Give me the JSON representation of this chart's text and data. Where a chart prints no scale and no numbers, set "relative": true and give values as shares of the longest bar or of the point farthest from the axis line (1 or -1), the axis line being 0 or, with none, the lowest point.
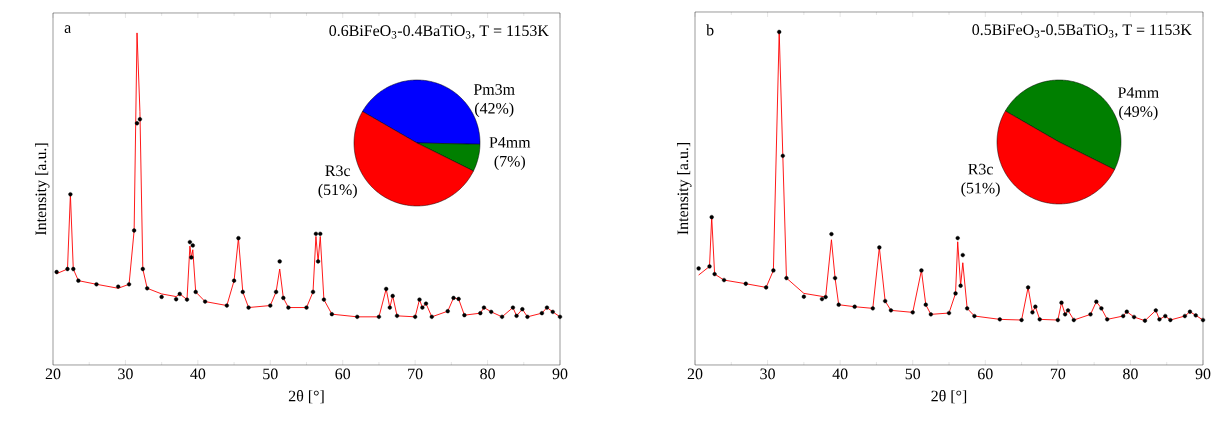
{
  "chart_data": [
    {
      "type": "line",
      "title": "0.6BiFeO$_{3}$-0.4BaTiO$_{3}$, T = 1153K",
      "xlabel": "2θ [°]",
      "ylabel": "Intensity [a.u.]",
      "annotations": [
        "a"
      ],
      "relative": true,
      "xlim": [
        20,
        90
      ],
      "xticks": [
        20,
        30,
        40,
        50,
        60,
        70,
        80,
        90
      ],
      "x": [
        20.5,
        22,
        22.4,
        22.8,
        23.5,
        26,
        29,
        30.5,
        31.2,
        31.6,
        32.0,
        32.4,
        33,
        35,
        37,
        37.5,
        38.5,
        38.9,
        39.1,
        39.3,
        39.7,
        41,
        44,
        45.0,
        45.6,
        46.2,
        47,
        50,
        50.8,
        51.3,
        51.8,
        52.5,
        55,
        55.9,
        56.3,
        56.6,
        56.9,
        57.4,
        58.5,
        62,
        65,
        66.0,
        66.5,
        66.9,
        67.5,
        70,
        70.6,
        71,
        71.5,
        72.3,
        74.5,
        75.3,
        76,
        76.8,
        79,
        79.5,
        80.5,
        82,
        83.5,
        84,
        84.8,
        85.5,
        87.5,
        88.2,
        89,
        90
      ],
      "series": [
        {
          "type": "scatter",
          "color": "#000000",
          "values": [
            0.28,
            0.289,
            0.514,
            0.289,
            0.254,
            0.243,
            0.236,
            0.243,
            0.405,
            0.728,
            0.74,
            0.289,
            0.231,
            0.205,
            0.198,
            0.214,
            0.197,
            0.37,
            0.324,
            0.36,
            0.22,
            0.191,
            0.179,
            0.254,
            0.382,
            0.22,
            0.173,
            0.179,
            0.22,
            0.312,
            0.202,
            0.173,
            0.173,
            0.22,
            0.395,
            0.312,
            0.395,
            0.197,
            0.153,
            0.145,
            0.145,
            0.229,
            0.173,
            0.208,
            0.148,
            0.145,
            0.197,
            0.173,
            0.185,
            0.145,
            0.162,
            0.202,
            0.199,
            0.15,
            0.156,
            0.173,
            0.16,
            0.145,
            0.173,
            0.148,
            0.168,
            0.145,
            0.156,
            0.173,
            0.16,
            0.145
          ]
        },
        {
          "type": "line",
          "color": "#ff0000",
          "values": [
            0.275,
            0.289,
            0.514,
            0.289,
            0.254,
            0.243,
            0.231,
            0.243,
            0.405,
            1,
            0.763,
            0.289,
            0.231,
            0.214,
            0.206,
            0.214,
            0.197,
            0.358,
            0.324,
            0.347,
            0.22,
            0.191,
            0.179,
            0.254,
            0.382,
            0.22,
            0.173,
            0.179,
            0.22,
            0.289,
            0.202,
            0.173,
            0.173,
            0.22,
            0.387,
            0.312,
            0.387,
            0.197,
            0.153,
            0.145,
            0.145,
            0.229,
            0.173,
            0.208,
            0.148,
            0.145,
            0.197,
            0.173,
            0.185,
            0.145,
            0.162,
            0.202,
            0.199,
            0.15,
            0.156,
            0.173,
            0.16,
            0.145,
            0.173,
            0.148,
            0.168,
            0.145,
            0.156,
            0.173,
            0.16,
            0.145
          ]
        }
      ]
    },
    {
      "type": "pie",
      "categories": [
        "Pm3m",
        "P4mm",
        "R3c"
      ],
      "values": [
        42,
        7,
        51
      ],
      "value_labels": [
        "(42%)",
        "(7%)",
        "(51%)"
      ],
      "colors": [
        "#0000ff",
        "#007f00",
        "#ff0000"
      ]
    },
    {
      "type": "line",
      "title": "0.5BiFeO$_{3}$-0.5BaTiO$_{3}$, T = 1153K",
      "xlabel": "2θ [°]",
      "ylabel": "Intensity [a.u.]",
      "annotations": [
        "b"
      ],
      "relative": true,
      "xlim": [
        20,
        90
      ],
      "xticks": [
        20,
        30,
        40,
        50,
        60,
        70,
        80,
        90
      ],
      "x": [
        20.5,
        22,
        22.3,
        22.7,
        24,
        27,
        29.8,
        30.8,
        31.6,
        32.1,
        32.6,
        35,
        37.5,
        38,
        38.8,
        39.3,
        39.8,
        42,
        44.5,
        45.4,
        46.2,
        47,
        50,
        51.2,
        51.8,
        52.5,
        55,
        55.9,
        56.2,
        56.6,
        56.9,
        57.5,
        58.5,
        62,
        65,
        65.9,
        66.5,
        66.9,
        67.5,
        70,
        70.5,
        71,
        71.4,
        72.2,
        74.5,
        75.3,
        76,
        76.8,
        79,
        79.5,
        80.5,
        82,
        83.5,
        84,
        84.8,
        85.5,
        87.5,
        88.2,
        89,
        90
      ],
      "series": [
        {
          "type": "scatter",
          "color": "#000000",
          "values": [
            0.29,
            0.296,
            0.444,
            0.273,
            0.255,
            0.244,
            0.233,
            0.284,
            1,
            0.628,
            0.261,
            0.205,
            0.198,
            0.204,
            0.393,
            0.261,
            0.181,
            0.175,
            0.17,
            0.353,
            0.192,
            0.164,
            0.158,
            0.284,
            0.181,
            0.152,
            0.156,
            0.215,
            0.381,
            0.238,
            0.33,
            0.17,
            0.147,
            0.137,
            0.135,
            0.233,
            0.158,
            0.175,
            0.137,
            0.135,
            0.187,
            0.152,
            0.164,
            0.135,
            0.152,
            0.19,
            0.17,
            0.137,
            0.147,
            0.16,
            0.144,
            0.133,
            0.164,
            0.137,
            0.147,
            0.135,
            0.147,
            0.16,
            0.149,
            0.135
          ]
        },
        {
          "type": "line",
          "color": "#ff0000",
          "values": [
            0.27,
            0.296,
            0.444,
            0.273,
            0.255,
            0.244,
            0.233,
            0.284,
            1,
            0.628,
            0.261,
            0.215,
            0.206,
            0.204,
            0.376,
            0.261,
            0.181,
            0.175,
            0.17,
            0.353,
            0.192,
            0.164,
            0.158,
            0.284,
            0.181,
            0.152,
            0.156,
            0.215,
            0.37,
            0.238,
            0.307,
            0.17,
            0.147,
            0.137,
            0.135,
            0.233,
            0.158,
            0.175,
            0.137,
            0.135,
            0.187,
            0.152,
            0.164,
            0.135,
            0.152,
            0.19,
            0.17,
            0.137,
            0.147,
            0.16,
            0.144,
            0.133,
            0.164,
            0.137,
            0.147,
            0.135,
            0.147,
            0.16,
            0.149,
            0.135
          ]
        }
      ]
    },
    {
      "type": "pie",
      "categories": [
        "P4mm",
        "R3c"
      ],
      "values": [
        49,
        51
      ],
      "value_labels": [
        "(49%)",
        "(51%)"
      ],
      "colors": [
        "#007f00",
        "#ff0000"
      ]
    }
  ]
}
